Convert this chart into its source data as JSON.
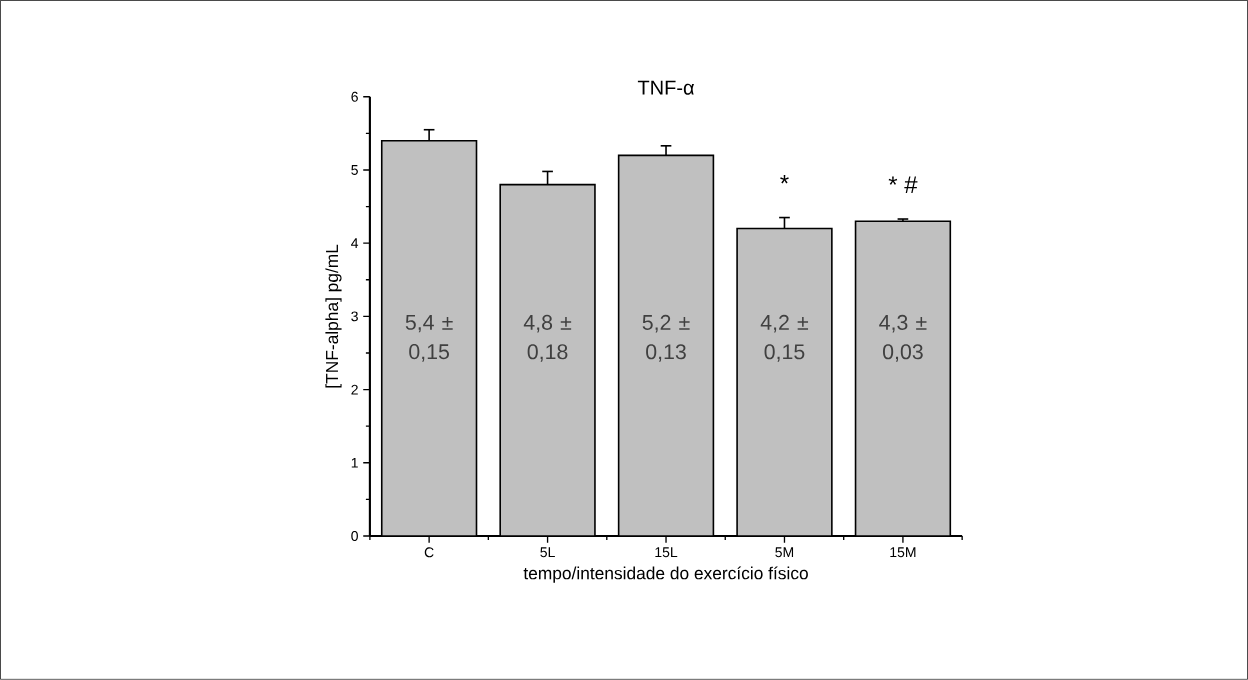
{
  "chart_data": {
    "type": "bar",
    "title": "TNF-α",
    "xlabel": "tempo/intensidade do exercício físico",
    "ylabel": "[TNF-alpha] pg/mL",
    "categories": [
      "C",
      "5L",
      "15L",
      "5M",
      "15M"
    ],
    "values": [
      5.4,
      4.8,
      5.2,
      4.2,
      4.3
    ],
    "errors": [
      0.15,
      0.18,
      0.13,
      0.15,
      0.03
    ],
    "value_labels": [
      "5,4 ± 0,15",
      "4,8 ± 0,18",
      "5,2 ± 0,13",
      "4,2 ± 0,15",
      "4,3 ± 0,03"
    ],
    "color": "#c0c0c0",
    "ylim": [
      0,
      6
    ],
    "yticks": [
      0,
      1,
      2,
      3,
      4,
      5,
      6
    ],
    "grid": false,
    "annotations": [
      "*",
      "* #"
    ]
  }
}
